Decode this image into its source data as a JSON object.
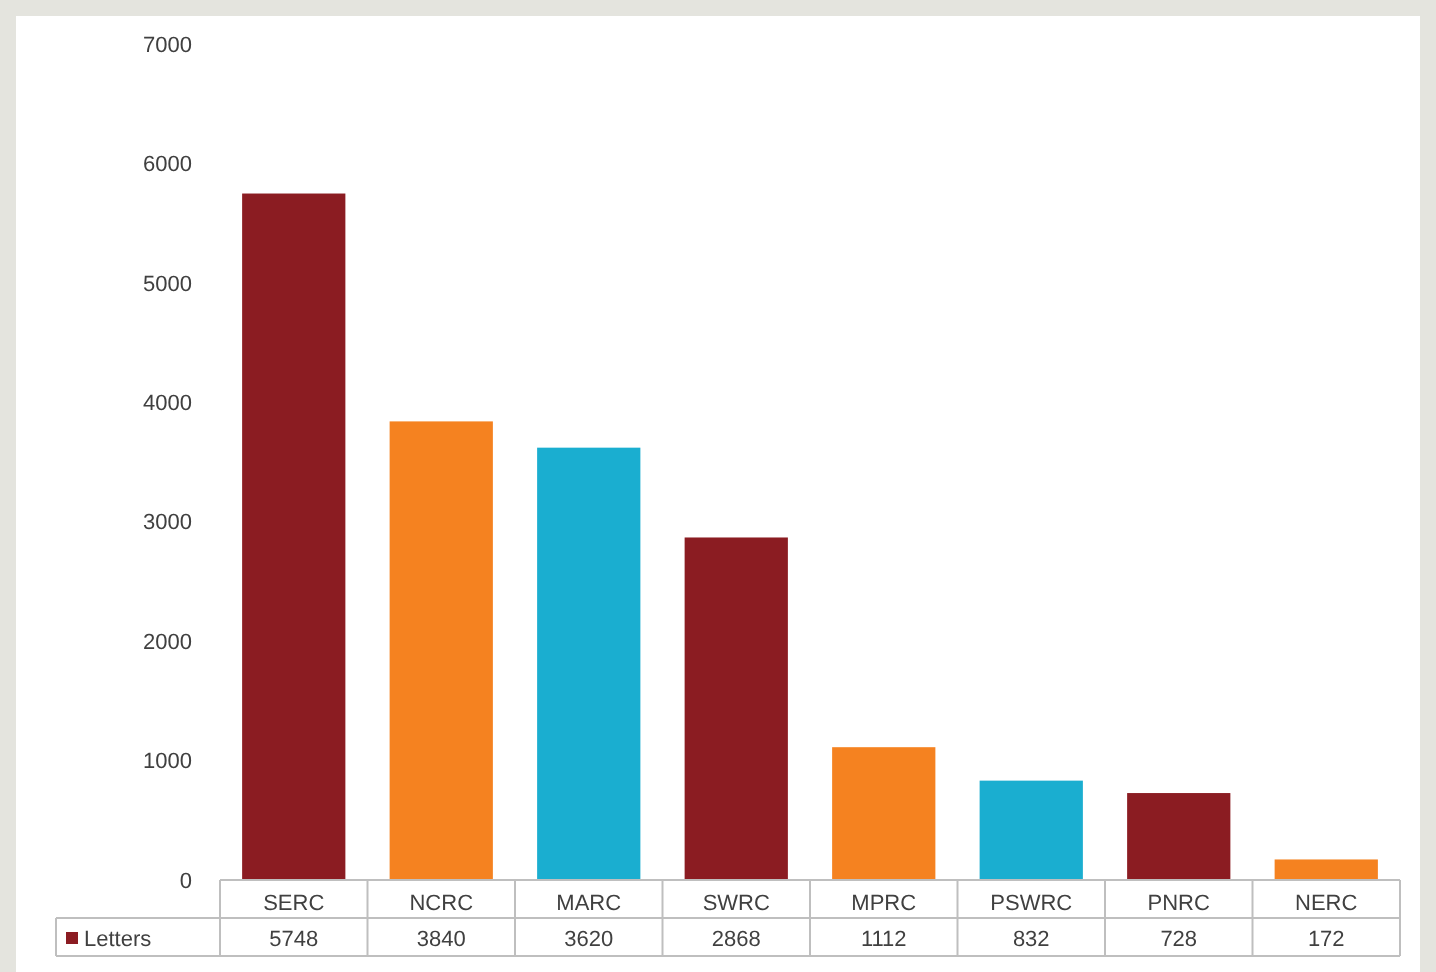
{
  "chart_data": {
    "type": "bar",
    "categories": [
      "SERC",
      "NCRC",
      "MARC",
      "SWRC",
      "MPRC",
      "PSWRC",
      "PNRC",
      "NERC"
    ],
    "series": [
      {
        "name": "Letters",
        "color": "#8b1c22",
        "colors": [
          "#8b1c22",
          "#f58220",
          "#1aaed0",
          "#8b1c22",
          "#f58220",
          "#1aaed0",
          "#8b1c22",
          "#f58220"
        ],
        "values": [
          5748,
          3840,
          3620,
          2868,
          1112,
          832,
          728,
          172
        ]
      }
    ],
    "ylim": [
      0,
      7000
    ],
    "yticks": [
      0,
      1000,
      2000,
      3000,
      4000,
      5000,
      6000,
      7000
    ],
    "grid": false,
    "data_labels": true,
    "legend": "bottom"
  }
}
